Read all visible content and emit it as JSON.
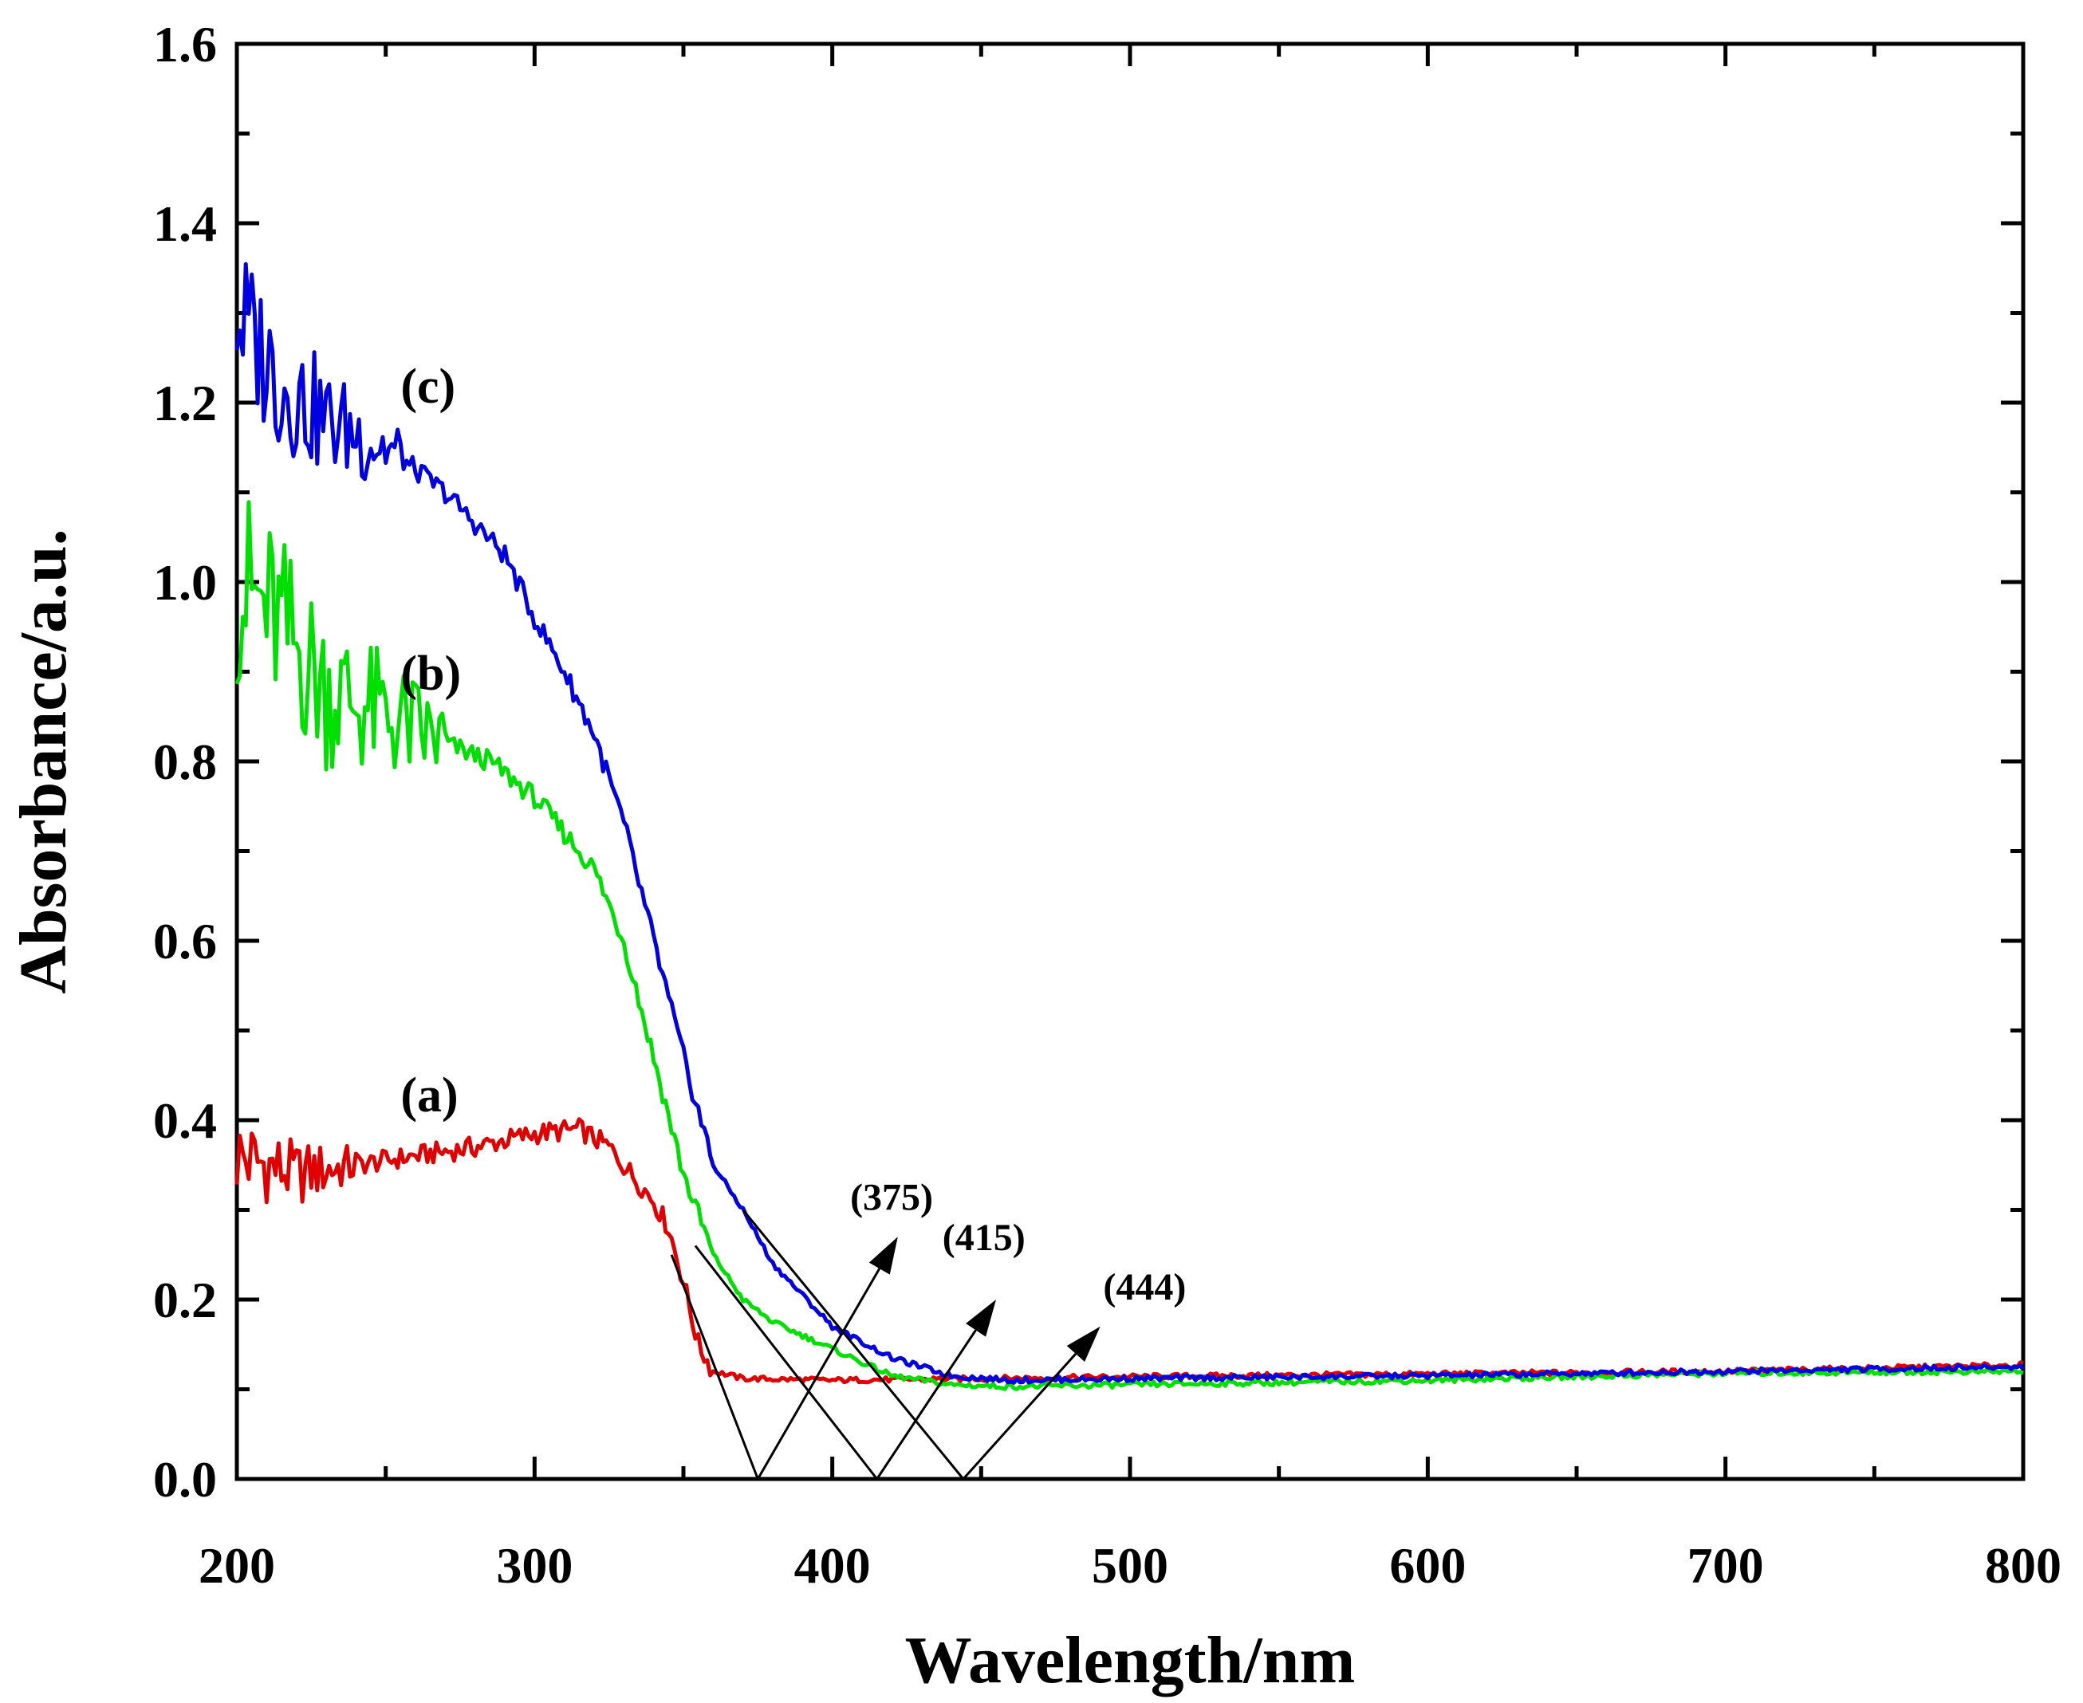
{
  "chart_data": {
    "type": "line",
    "xlabel": "Wavelength/nm",
    "ylabel": "Absorbance/a.u.",
    "xlim": [
      200,
      800
    ],
    "ylim": [
      0.0,
      1.6
    ],
    "x_ticks": [
      "200",
      "300",
      "400",
      "500",
      "600",
      "700",
      "800"
    ],
    "y_ticks": [
      "0.0",
      "0.2",
      "0.4",
      "0.6",
      "0.8",
      "1.0",
      "1.2",
      "1.4",
      "1.6"
    ],
    "grid": false,
    "series": [
      {
        "name": "(a)",
        "color": "#e00000",
        "noise_until": 240,
        "noise_amp": 0.05,
        "points": [
          [
            200,
            0.36
          ],
          [
            220,
            0.34
          ],
          [
            240,
            0.35
          ],
          [
            260,
            0.36
          ],
          [
            280,
            0.37
          ],
          [
            300,
            0.385
          ],
          [
            315,
            0.39
          ],
          [
            325,
            0.37
          ],
          [
            335,
            0.33
          ],
          [
            340,
            0.31
          ],
          [
            345,
            0.28
          ],
          [
            350,
            0.22
          ],
          [
            355,
            0.15
          ],
          [
            360,
            0.12
          ],
          [
            370,
            0.112
          ],
          [
            400,
            0.11
          ],
          [
            450,
            0.112
          ],
          [
            500,
            0.114
          ],
          [
            600,
            0.117
          ],
          [
            700,
            0.12
          ],
          [
            800,
            0.127
          ]
        ]
      },
      {
        "name": "(b)",
        "color": "#00e000",
        "noise_until": 270,
        "noise_amp": 0.12,
        "points": [
          [
            200,
            1.0
          ],
          [
            215,
            0.95
          ],
          [
            230,
            0.88
          ],
          [
            250,
            0.85
          ],
          [
            270,
            0.82
          ],
          [
            285,
            0.8
          ],
          [
            300,
            0.76
          ],
          [
            310,
            0.72
          ],
          [
            320,
            0.68
          ],
          [
            330,
            0.6
          ],
          [
            340,
            0.47
          ],
          [
            350,
            0.34
          ],
          [
            360,
            0.25
          ],
          [
            370,
            0.2
          ],
          [
            380,
            0.175
          ],
          [
            400,
            0.145
          ],
          [
            420,
            0.115
          ],
          [
            440,
            0.105
          ],
          [
            460,
            0.103
          ],
          [
            500,
            0.105
          ],
          [
            600,
            0.11
          ],
          [
            700,
            0.118
          ],
          [
            800,
            0.12
          ]
        ]
      },
      {
        "name": "(c)",
        "color": "#0000e0",
        "noise_until": 255,
        "noise_amp": 0.09,
        "points": [
          [
            200,
            1.3
          ],
          [
            215,
            1.22
          ],
          [
            230,
            1.18
          ],
          [
            250,
            1.15
          ],
          [
            270,
            1.1
          ],
          [
            290,
            1.03
          ],
          [
            300,
            0.96
          ],
          [
            310,
            0.9
          ],
          [
            320,
            0.83
          ],
          [
            330,
            0.73
          ],
          [
            340,
            0.6
          ],
          [
            350,
            0.47
          ],
          [
            360,
            0.35
          ],
          [
            370,
            0.3
          ],
          [
            380,
            0.24
          ],
          [
            400,
            0.17
          ],
          [
            420,
            0.135
          ],
          [
            440,
            0.115
          ],
          [
            460,
            0.11
          ],
          [
            500,
            0.112
          ],
          [
            600,
            0.115
          ],
          [
            700,
            0.12
          ],
          [
            800,
            0.125
          ]
        ]
      }
    ],
    "curve_labels": [
      {
        "text": "(a)",
        "x": 255,
        "y": 0.41
      },
      {
        "text": "(b)",
        "x": 255,
        "y": 0.88
      },
      {
        "text": "(c)",
        "x": 255,
        "y": 1.2
      }
    ],
    "tangent_lines": [
      {
        "from": [
          346,
          0.25
        ],
        "to": [
          375,
          0.0
        ]
      },
      {
        "from": [
          354,
          0.26
        ],
        "to": [
          415,
          0.0
        ]
      },
      {
        "from": [
          370,
          0.3
        ],
        "to": [
          444,
          0.0
        ]
      }
    ],
    "edge_annotations": [
      {
        "text": "(375)",
        "from": [
          375,
          0.0
        ],
        "to": [
          422,
          0.27
        ],
        "label_at": [
          406,
          0.3
        ]
      },
      {
        "text": "(415)",
        "from": [
          415,
          0.0
        ],
        "to": [
          455,
          0.2
        ],
        "label_at": [
          437,
          0.255
        ]
      },
      {
        "text": "(444)",
        "from": [
          444,
          0.0
        ],
        "to": [
          490,
          0.17
        ],
        "label_at": [
          491,
          0.2
        ]
      }
    ]
  }
}
